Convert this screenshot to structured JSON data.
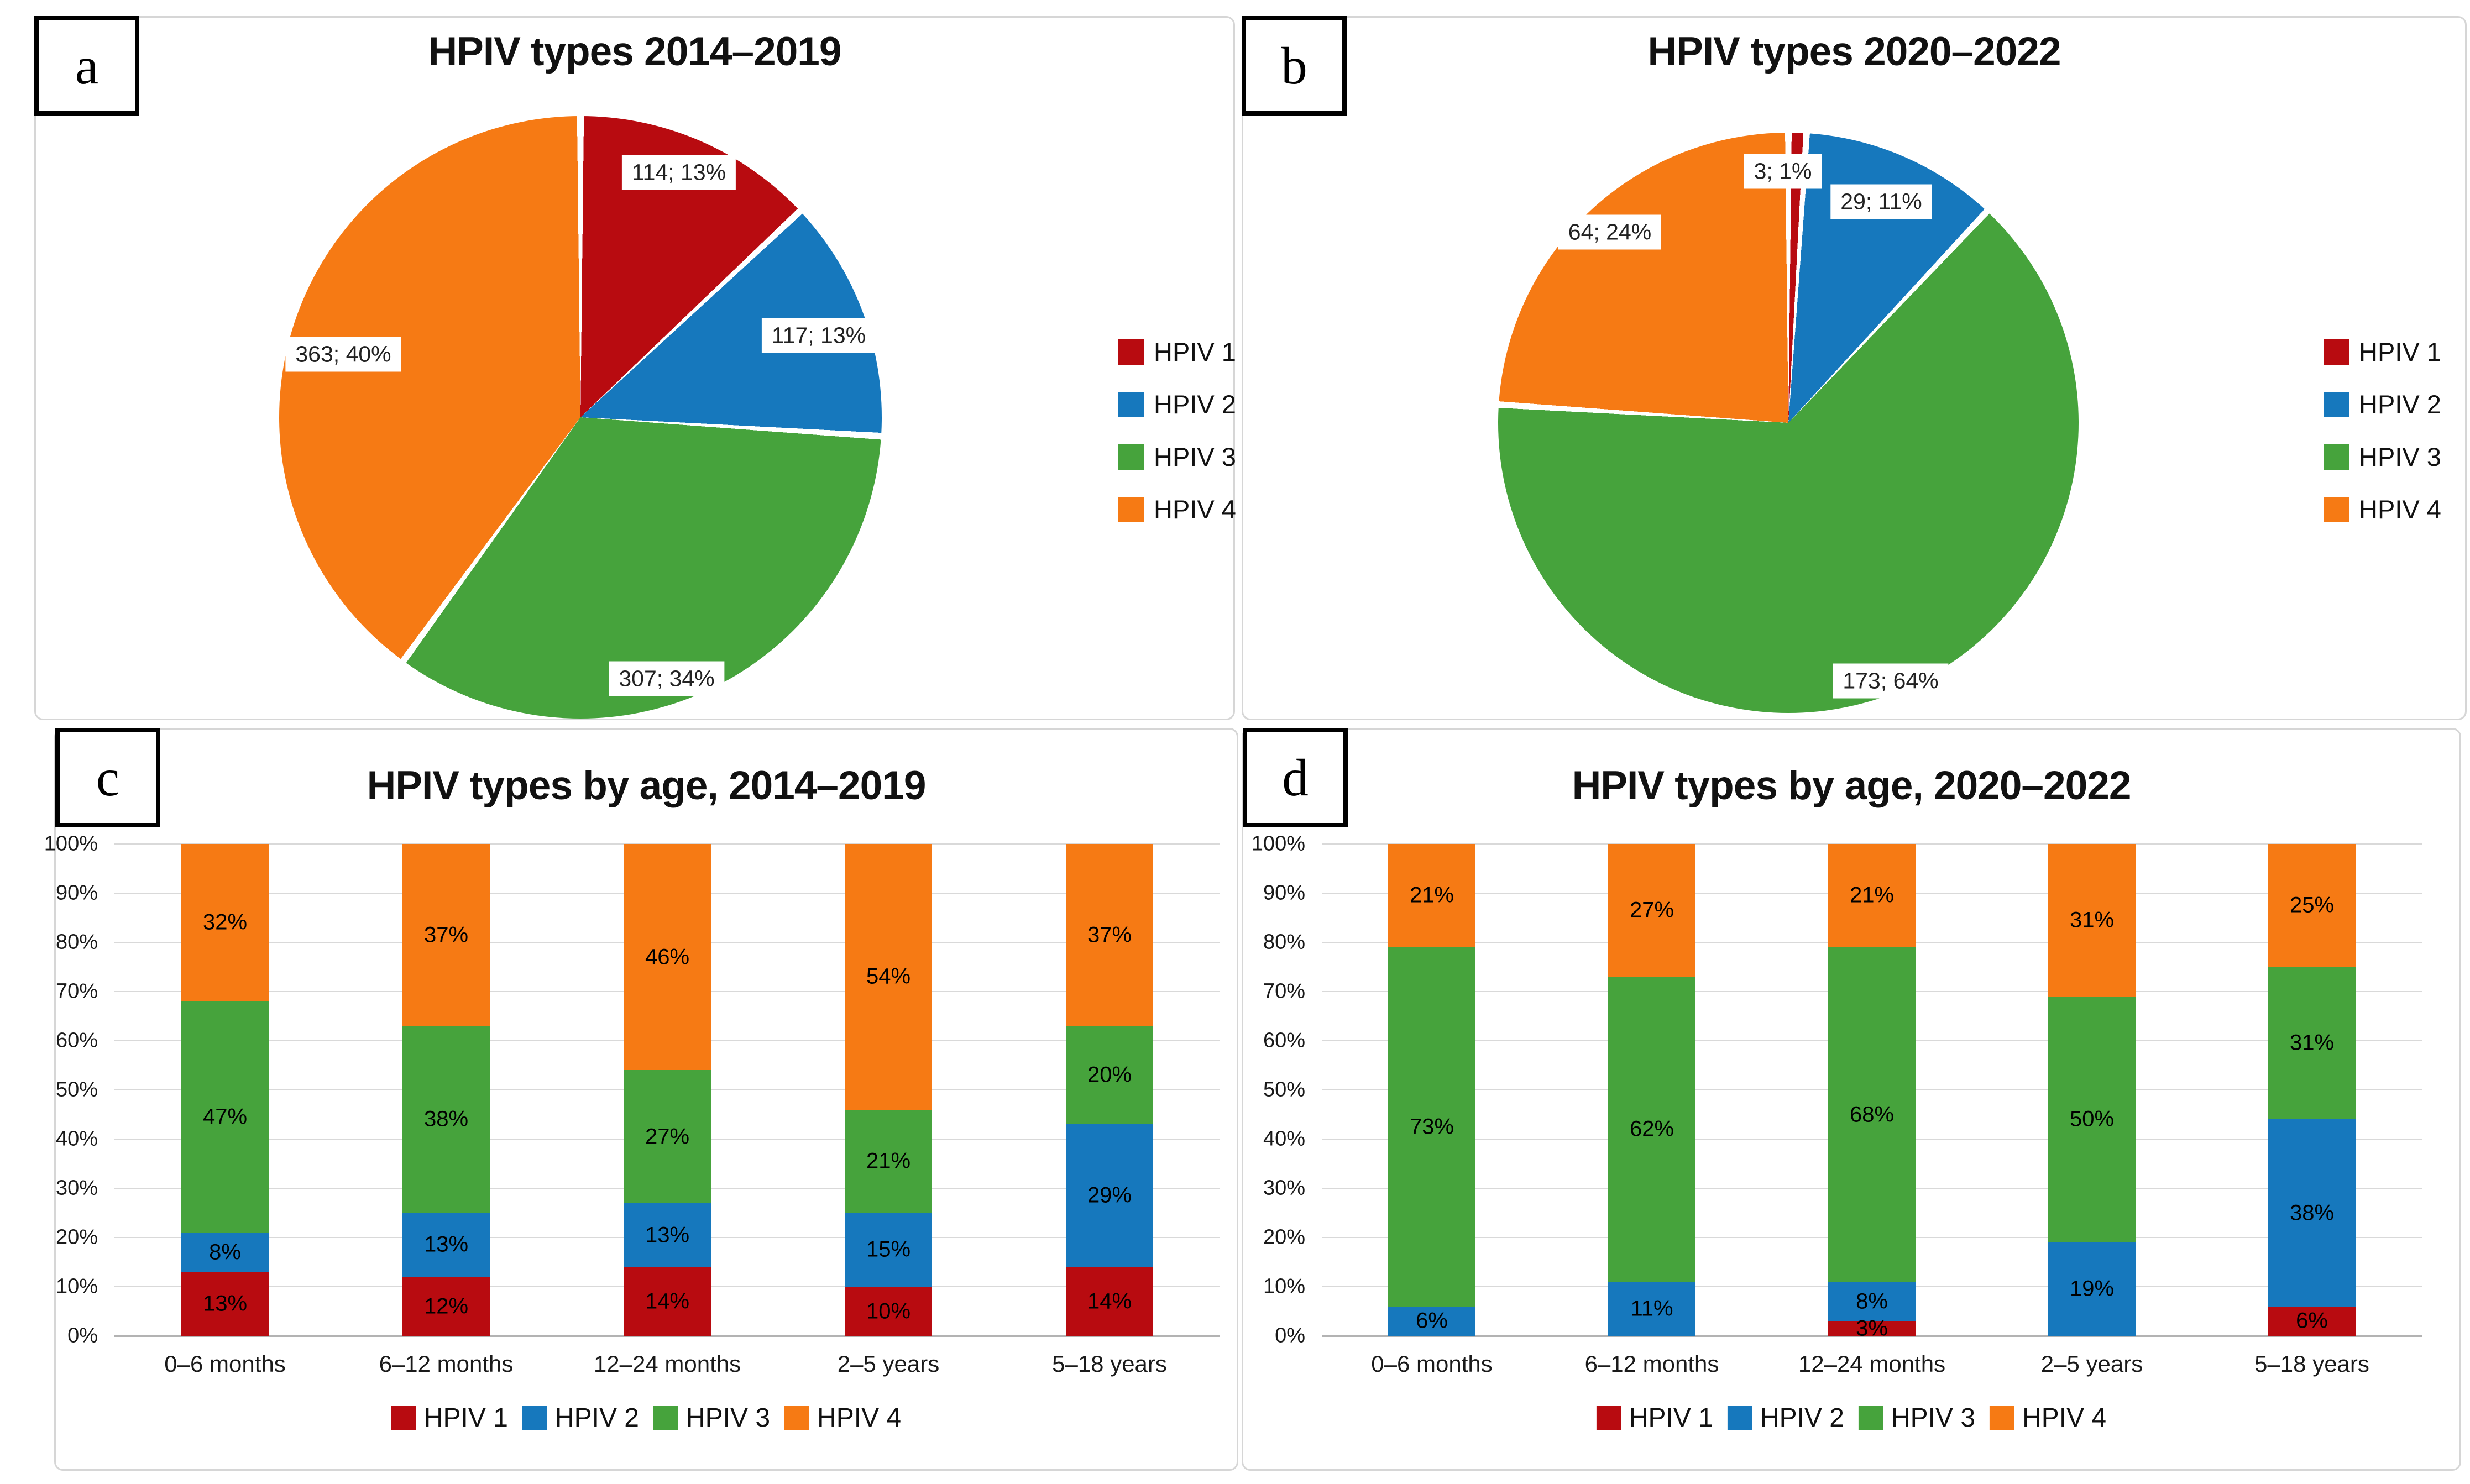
{
  "colors": {
    "series": [
      "#b80b10",
      "#1678bd",
      "#46a33c",
      "#f67a14"
    ],
    "grid": "#d9d9d9",
    "axis_line": "#b3b3b3",
    "frame_border": "#d6d6d6",
    "text": "#141414"
  },
  "series_names": [
    "HPIV 1",
    "HPIV 2",
    "HPIV 3",
    "HPIV 4"
  ],
  "chart_data": [
    {
      "id": "a",
      "letter": "a",
      "type": "pie",
      "title": "HPIV types 2014–2019",
      "slices": [
        {
          "name": "HPIV 1",
          "count": 114,
          "pct": 13,
          "label": "114; 13%"
        },
        {
          "name": "HPIV 2",
          "count": 117,
          "pct": 13,
          "label": "117; 13%"
        },
        {
          "name": "HPIV 3",
          "count": 307,
          "pct": 34,
          "label": "307; 34%"
        },
        {
          "name": "HPIV 4",
          "count": 363,
          "pct": 40,
          "label": "363; 40%"
        }
      ],
      "legend": [
        "HPIV 1",
        "HPIV 2",
        "HPIV 3",
        "HPIV 4"
      ],
      "legend_position": "right"
    },
    {
      "id": "b",
      "letter": "b",
      "type": "pie",
      "title": "HPIV types 2020–2022",
      "slices": [
        {
          "name": "HPIV 1",
          "count": 3,
          "pct": 1,
          "label": "3; 1%"
        },
        {
          "name": "HPIV 2",
          "count": 29,
          "pct": 11,
          "label": "29; 11%"
        },
        {
          "name": "HPIV 3",
          "count": 173,
          "pct": 64,
          "label": "173; 64%"
        },
        {
          "name": "HPIV 4",
          "count": 64,
          "pct": 24,
          "label": "64; 24%"
        }
      ],
      "legend": [
        "HPIV 1",
        "HPIV 2",
        "HPIV 3",
        "HPIV 4"
      ],
      "legend_position": "right"
    },
    {
      "id": "c",
      "letter": "c",
      "type": "stacked-bar",
      "title": "HPIV types by age, 2014–2019",
      "categories": [
        "0–6 months",
        "6–12 months",
        "12–24 months",
        "2–5 years",
        "5–18 years"
      ],
      "series": [
        {
          "name": "HPIV 1",
          "values": [
            13,
            12,
            14,
            10,
            14
          ]
        },
        {
          "name": "HPIV 2",
          "values": [
            8,
            13,
            13,
            15,
            29
          ]
        },
        {
          "name": "HPIV 3",
          "values": [
            47,
            38,
            27,
            21,
            20
          ]
        },
        {
          "name": "HPIV 4",
          "values": [
            32,
            37,
            46,
            54,
            37
          ]
        }
      ],
      "y_axis": {
        "min": 0,
        "max": 100,
        "step": 10,
        "suffix": "%"
      },
      "grid": true,
      "legend": [
        "HPIV 1",
        "HPIV 2",
        "HPIV 3",
        "HPIV 4"
      ],
      "legend_position": "bottom"
    },
    {
      "id": "d",
      "letter": "d",
      "type": "stacked-bar",
      "title": "HPIV types by age, 2020–2022",
      "categories": [
        "0–6 months",
        "6–12 months",
        "12–24 months",
        "2–5 years",
        "5–18 years"
      ],
      "series": [
        {
          "name": "HPIV 1",
          "values": [
            0,
            0,
            3,
            0,
            6
          ]
        },
        {
          "name": "HPIV 2",
          "values": [
            6,
            11,
            8,
            19,
            38
          ]
        },
        {
          "name": "HPIV 3",
          "values": [
            73,
            62,
            68,
            50,
            31
          ]
        },
        {
          "name": "HPIV 4",
          "values": [
            21,
            27,
            21,
            31,
            25
          ]
        }
      ],
      "y_axis": {
        "min": 0,
        "max": 100,
        "step": 10,
        "suffix": "%"
      },
      "grid": true,
      "legend": [
        "HPIV 1",
        "HPIV 2",
        "HPIV 3",
        "HPIV 4"
      ],
      "legend_position": "bottom"
    }
  ]
}
